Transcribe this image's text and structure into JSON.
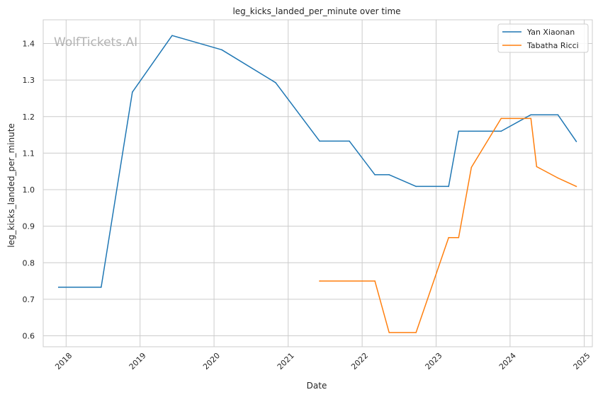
{
  "chart_data": {
    "type": "line",
    "title": "leg_kicks_landed_per_minute over time",
    "xlabel": "Date",
    "ylabel": "leg_kicks_landed_per_minute",
    "watermark": "WolfTickets.AI",
    "x_ticks": [
      "2018",
      "2019",
      "2020",
      "2021",
      "2022",
      "2023",
      "2024",
      "2025"
    ],
    "y_ticks": [
      "0.6",
      "0.7",
      "0.8",
      "0.9",
      "1.0",
      "1.1",
      "1.2",
      "1.3",
      "1.4"
    ],
    "xlim": [
      "2017-09-10",
      "2025-02-10"
    ],
    "ylim": [
      0.57,
      1.465
    ],
    "grid": true,
    "legend_position": "top-right",
    "series": [
      {
        "name": "Yan Xiaonan",
        "color": "#1f77b4",
        "points": [
          [
            "2017-11-25",
            0.733
          ],
          [
            "2018-06-23",
            0.733
          ],
          [
            "2018-11-24",
            1.267
          ],
          [
            "2019-06-08",
            1.422
          ],
          [
            "2020-02-08",
            1.383
          ],
          [
            "2020-10-31",
            1.293
          ],
          [
            "2021-06-05",
            1.133
          ],
          [
            "2021-10-30",
            1.133
          ],
          [
            "2022-03-05",
            1.041
          ],
          [
            "2022-05-14",
            1.041
          ],
          [
            "2022-09-24",
            1.009
          ],
          [
            "2023-03-04",
            1.009
          ],
          [
            "2023-04-22",
            1.16
          ],
          [
            "2023-11-18",
            1.16
          ],
          [
            "2024-04-13",
            1.205
          ],
          [
            "2024-08-24",
            1.205
          ],
          [
            "2024-11-23",
            1.132
          ]
        ]
      },
      {
        "name": "Tabatha Ricci",
        "color": "#ff7f0e",
        "points": [
          [
            "2021-06-05",
            0.75
          ],
          [
            "2022-03-05",
            0.75
          ],
          [
            "2022-05-14",
            0.609
          ],
          [
            "2022-09-24",
            0.609
          ],
          [
            "2023-03-04",
            0.869
          ],
          [
            "2023-04-22",
            0.869
          ],
          [
            "2023-06-24",
            1.061
          ],
          [
            "2023-11-18",
            1.195
          ],
          [
            "2024-04-13",
            1.195
          ],
          [
            "2024-05-11",
            1.063
          ],
          [
            "2024-08-24",
            1.032
          ],
          [
            "2024-11-23",
            1.009
          ]
        ]
      }
    ]
  }
}
